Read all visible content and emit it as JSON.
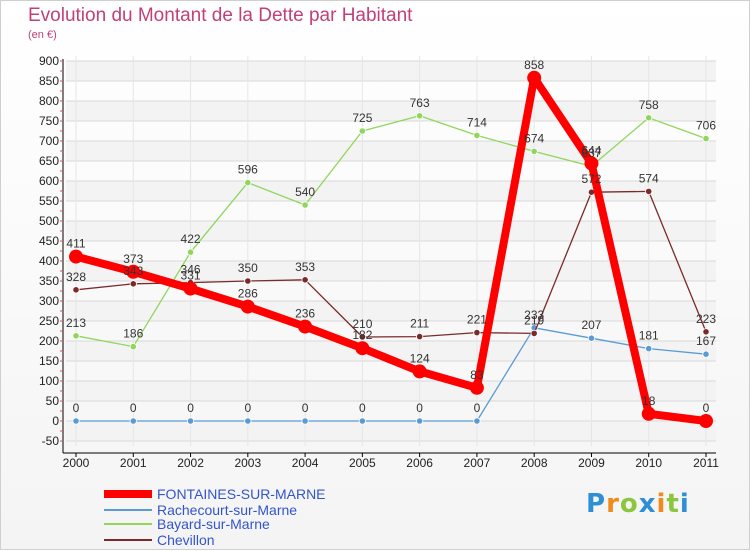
{
  "header": {
    "title": "Evolution du Montant de la Dette par Habitant",
    "subtitle": "(en €)"
  },
  "logo": {
    "text": "Proxiti"
  },
  "colors": {
    "title": "#c2407a",
    "grid": "#d9d9d9",
    "axis": "#000000",
    "legend_text": "#3355cc"
  },
  "chart_data": {
    "type": "line",
    "title": "Evolution du Montant de la Dette par Habitant",
    "subtitle": "(en €)",
    "xlabel": "",
    "ylabel": "",
    "x": [
      "2000",
      "2001",
      "2002",
      "2003",
      "2004",
      "2005",
      "2006",
      "2007",
      "2008",
      "2009",
      "2010",
      "2011"
    ],
    "ylim": [
      -50,
      900
    ],
    "yticks": [
      -50,
      0,
      50,
      100,
      150,
      200,
      250,
      300,
      350,
      400,
      450,
      500,
      550,
      600,
      650,
      700,
      750,
      800,
      850,
      900
    ],
    "grid": true,
    "legend_position": "bottom-left",
    "series": [
      {
        "name": "FONTAINES-SUR-MARNE",
        "color": "#ff0000",
        "emphasis": true,
        "values": [
          411,
          373,
          331,
          286,
          236,
          182,
          124,
          83,
          858,
          644,
          18,
          0
        ],
        "labels": [
          "411",
          "373",
          "331",
          "286",
          "236",
          "182",
          "124",
          "83",
          "858",
          "644",
          "18",
          "0"
        ]
      },
      {
        "name": "Rachecourt-sur-Marne",
        "color": "#5b9bd5",
        "emphasis": false,
        "values": [
          0,
          0,
          0,
          0,
          0,
          0,
          0,
          0,
          233,
          207,
          181,
          167
        ],
        "labels": [
          "0",
          "0",
          "0",
          "0",
          "0",
          "0",
          "0",
          "0",
          "233",
          "207",
          "181",
          "167"
        ]
      },
      {
        "name": "Bayard-sur-Marne",
        "color": "#8fd65a",
        "emphasis": false,
        "values": [
          213,
          186,
          422,
          596,
          540,
          725,
          763,
          714,
          674,
          637,
          758,
          706
        ],
        "labels": [
          "213",
          "186",
          "422",
          "596",
          "540",
          "725",
          "763",
          "714",
          "674",
          "637",
          "758",
          "706"
        ]
      },
      {
        "name": "Chevillon",
        "color": "#7b2a2a",
        "emphasis": false,
        "values": [
          328,
          343,
          346,
          350,
          353,
          210,
          211,
          221,
          219,
          572,
          574,
          223
        ],
        "labels": [
          "328",
          "343",
          "346",
          "350",
          "353",
          "210",
          "211",
          "221",
          "219",
          "572",
          "574",
          "223"
        ]
      }
    ]
  }
}
